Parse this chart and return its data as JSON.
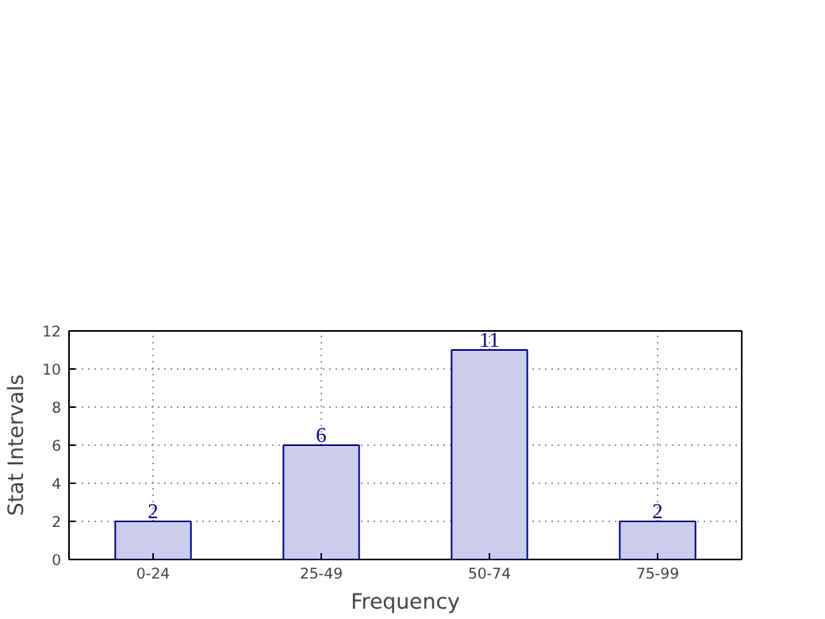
{
  "chart_data": {
    "type": "bar",
    "xlabel": "Frequency",
    "ylabel": "Stat Intervals",
    "categories": [
      "0-24",
      "25-49",
      "50-74",
      "75-99"
    ],
    "values": [
      2,
      6,
      11,
      2
    ],
    "color": "#ccccee",
    "ylim": [
      0,
      12
    ],
    "yticks": [
      0,
      2,
      4,
      6,
      8,
      10,
      12
    ],
    "grid": true,
    "data_labels": true
  }
}
